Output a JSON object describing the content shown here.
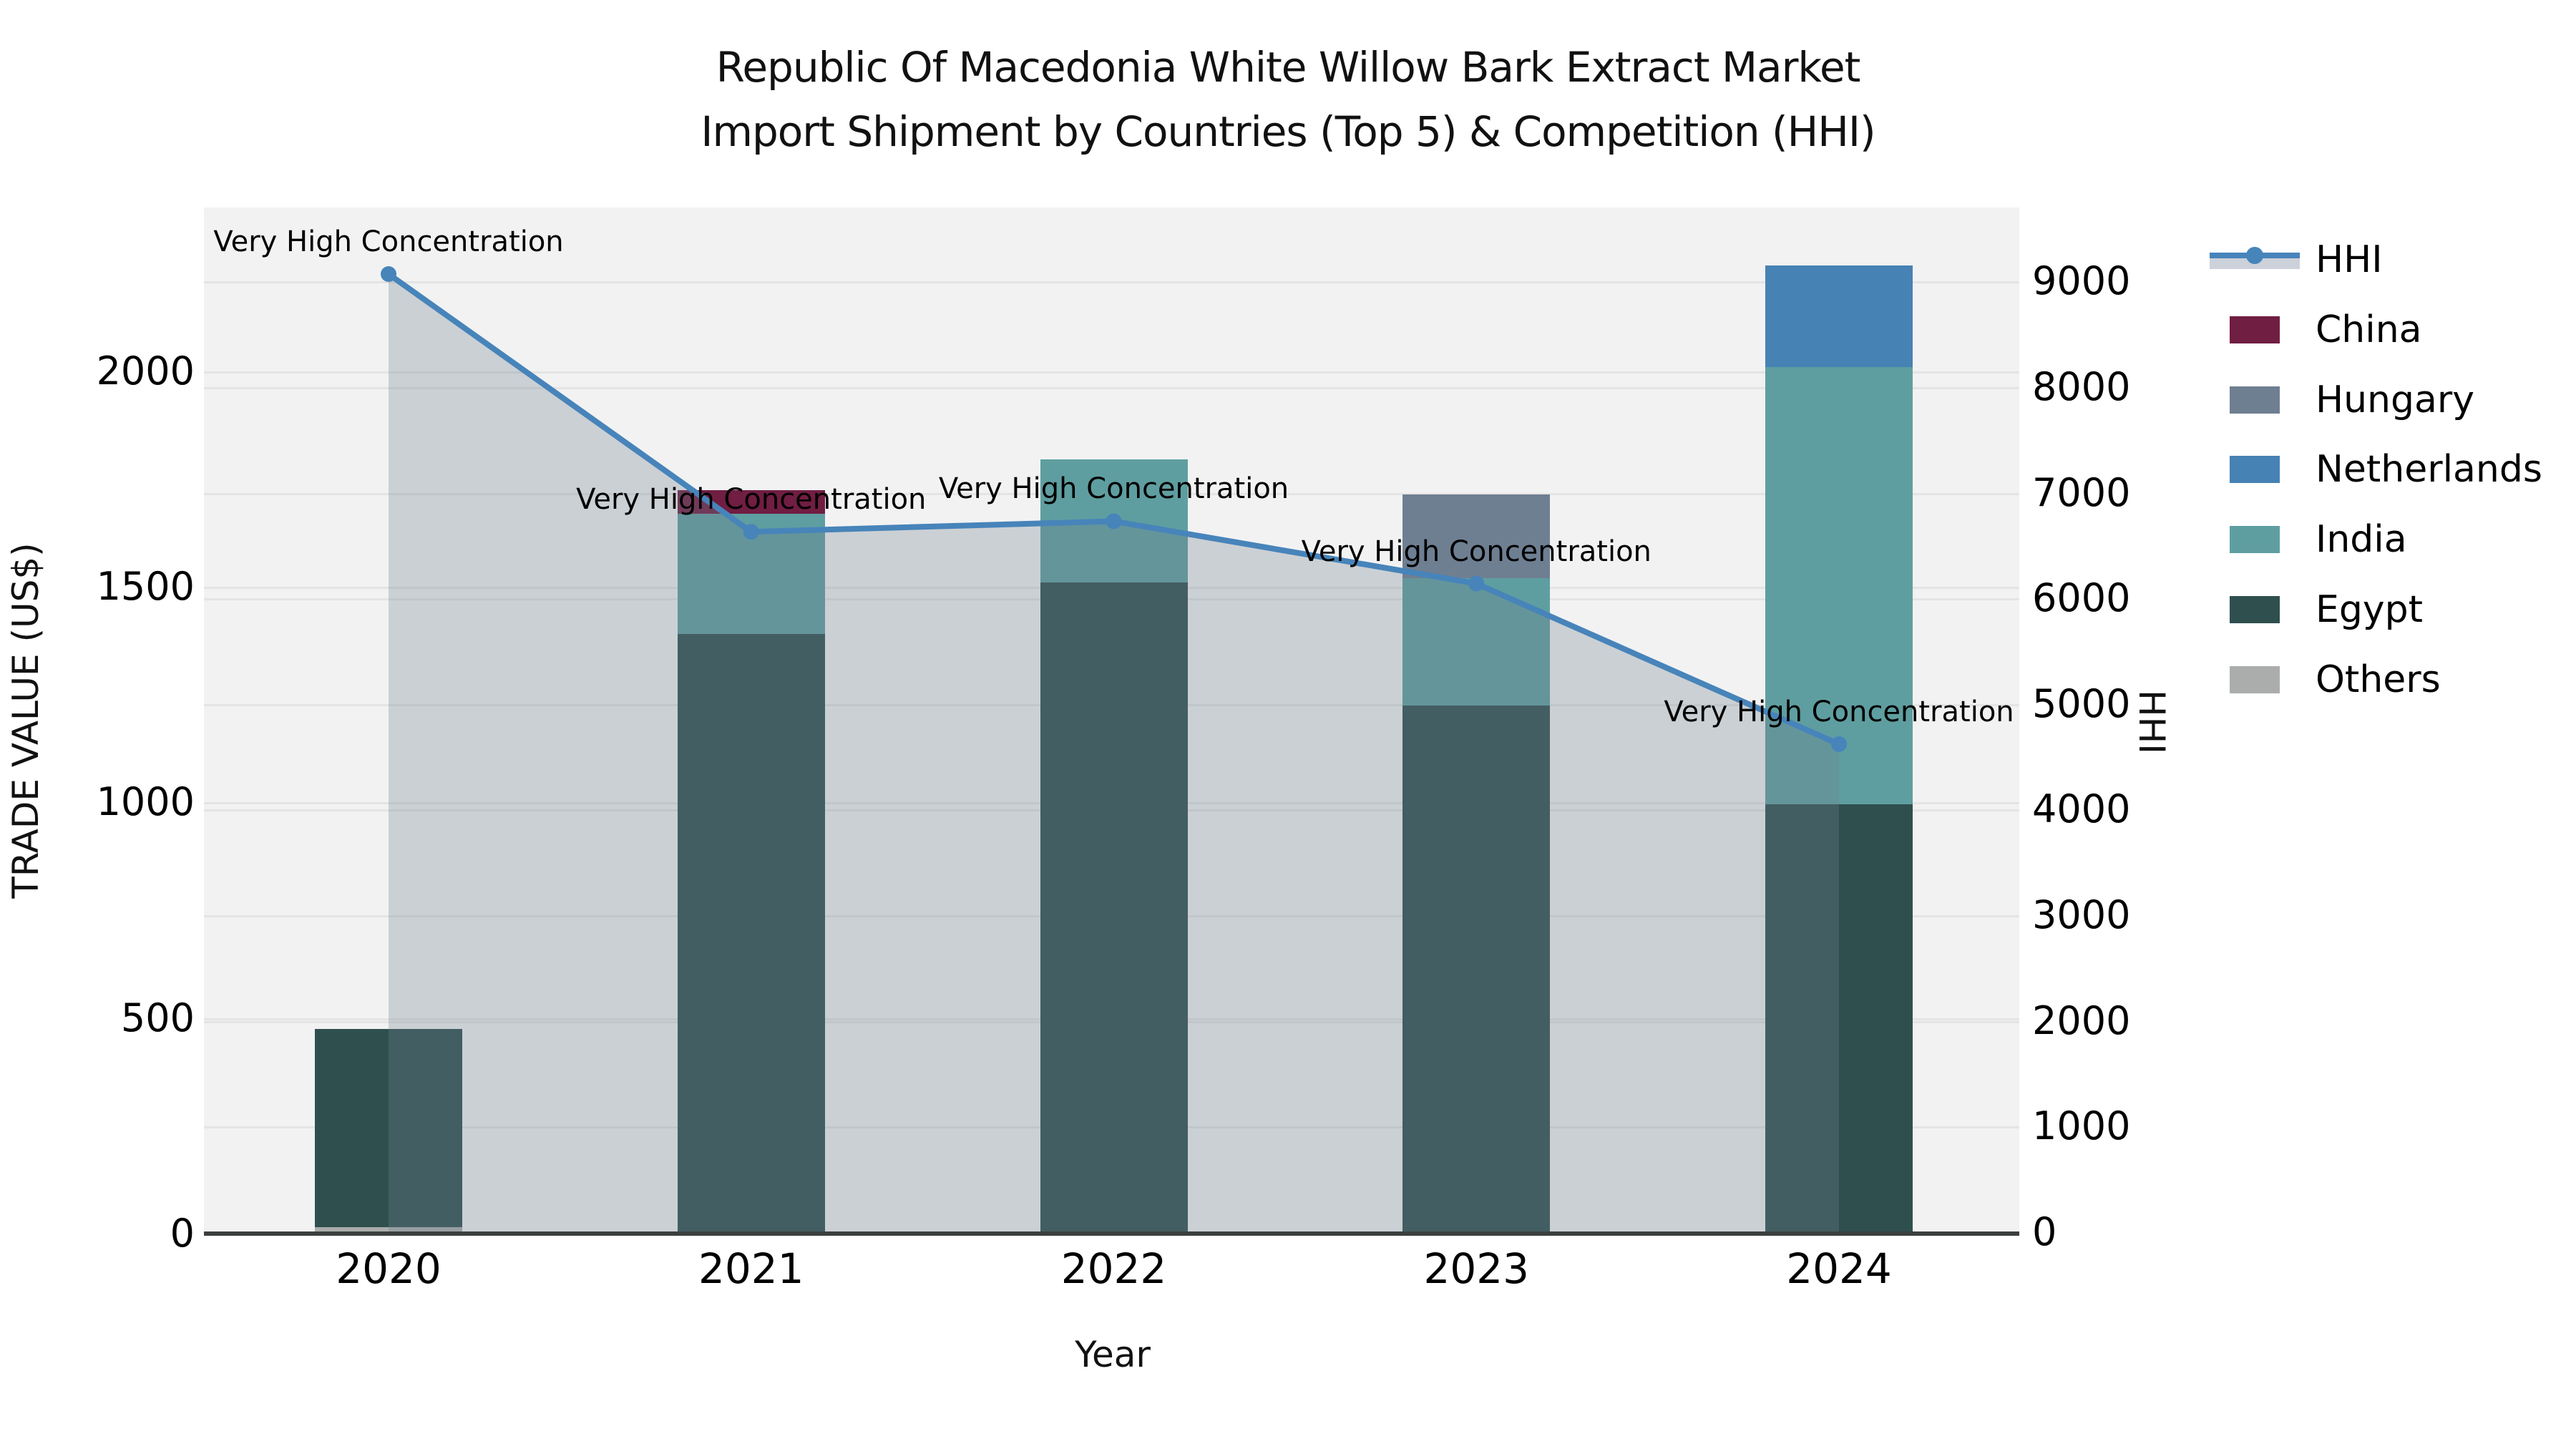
{
  "title": {
    "line1": "Republic Of Macedonia White Willow Bark Extract Market",
    "line2": "Import Shipment by Countries (Top 5) & Competition (HHI)"
  },
  "axes": {
    "x": {
      "label": "Year",
      "tick_labels": [
        "2020",
        "2021",
        "2022",
        "2023",
        "2024"
      ]
    },
    "y_left": {
      "label": "TRADE VALUE (US$)",
      "ticks": [
        0,
        500,
        1000,
        1500,
        2000
      ]
    },
    "y_right": {
      "label": "HHI",
      "ticks": [
        0,
        1000,
        2000,
        3000,
        4000,
        5000,
        6000,
        7000,
        8000,
        9000
      ]
    }
  },
  "legend": {
    "items": [
      {
        "label": "HHI",
        "type": "line",
        "color": "#4784ba"
      },
      {
        "label": "China",
        "type": "patch",
        "color": "#701e42"
      },
      {
        "label": "Hungary",
        "type": "patch",
        "color": "#6f7f92"
      },
      {
        "label": "Netherlands",
        "type": "patch",
        "color": "#4682b4"
      },
      {
        "label": "India",
        "type": "patch",
        "color": "#5f9ea0"
      },
      {
        "label": "Egypt",
        "type": "patch",
        "color": "#2f4f4f"
      },
      {
        "label": "Others",
        "type": "patch",
        "color": "#aaadac"
      }
    ]
  },
  "chart_data": {
    "type": "bar+line",
    "categories": [
      "2020",
      "2021",
      "2022",
      "2023",
      "2024"
    ],
    "bars_axis": "left",
    "bars_unit": "TRADE VALUE (US$)",
    "series": [
      {
        "name": "Others",
        "color": "#aaadac",
        "values": [
          15,
          0,
          0,
          0,
          0
        ]
      },
      {
        "name": "Egypt",
        "color": "#2f4f4f",
        "values": [
          460,
          1390,
          1510,
          1225,
          995
        ]
      },
      {
        "name": "India",
        "color": "#5f9ea0",
        "values": [
          0,
          280,
          285,
          295,
          1015
        ]
      },
      {
        "name": "Netherlands",
        "color": "#4682b4",
        "values": [
          0,
          0,
          0,
          0,
          235
        ]
      },
      {
        "name": "Hungary",
        "color": "#6f7f92",
        "values": [
          0,
          0,
          0,
          195,
          0
        ]
      },
      {
        "name": "China",
        "color": "#701e42",
        "values": [
          0,
          55,
          0,
          0,
          0
        ]
      }
    ],
    "line_series": {
      "name": "HHI",
      "axis": "right",
      "color": "#4784ba",
      "area_fill": "rgba(112,128,144,0.30)",
      "values": [
        9070,
        6630,
        6730,
        6140,
        4620
      ]
    },
    "annotations": [
      {
        "x": "2020",
        "text": "Very High Concentration"
      },
      {
        "x": "2021",
        "text": "Very High Concentration"
      },
      {
        "x": "2022",
        "text": "Very High Concentration"
      },
      {
        "x": "2023",
        "text": "Very High Concentration"
      },
      {
        "x": "2024",
        "text": "Very High Concentration"
      }
    ],
    "y_left_range": [
      0,
      2380
    ],
    "y_right_range": [
      0,
      9700
    ],
    "grid": true,
    "legend_position": "right"
  }
}
